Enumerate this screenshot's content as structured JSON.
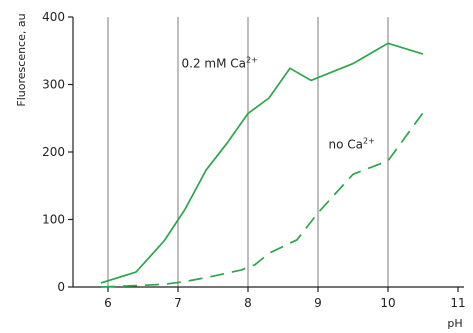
{
  "chart_data": {
    "type": "line",
    "title": "",
    "xlabel": "pH",
    "ylabel": "Fluorescence, au",
    "xlim": [
      5.5,
      11
    ],
    "ylim": [
      0,
      400
    ],
    "x_ticks": [
      6,
      7,
      8,
      9,
      10,
      11
    ],
    "y_ticks": [
      0,
      100,
      200,
      300,
      400
    ],
    "grid": "vertical",
    "legend": "none",
    "series": [
      {
        "color": "#2aa84a",
        "line_style": "solid",
        "points": [
          [
            5.9,
            6
          ],
          [
            6.4,
            22
          ],
          [
            6.8,
            68
          ],
          [
            7.1,
            115
          ],
          [
            7.4,
            173
          ],
          [
            7.7,
            213
          ],
          [
            8.0,
            257
          ],
          [
            8.3,
            280
          ],
          [
            8.6,
            324
          ],
          [
            8.9,
            306
          ],
          [
            9.5,
            331
          ],
          [
            10.0,
            361
          ],
          [
            10.5,
            345
          ]
        ]
      },
      {
        "color": "#2aa84a",
        "line_style": "dashed",
        "points": [
          [
            5.9,
            0
          ],
          [
            6.4,
            2
          ],
          [
            6.8,
            4
          ],
          [
            7.1,
            8
          ],
          [
            7.5,
            16
          ],
          [
            7.9,
            25
          ],
          [
            8.1,
            33
          ],
          [
            8.3,
            50
          ],
          [
            8.7,
            70
          ],
          [
            9.0,
            110
          ],
          [
            9.5,
            167
          ],
          [
            10.0,
            187
          ],
          [
            10.5,
            258
          ]
        ]
      }
    ],
    "annotations": [
      {
        "base": "0.2 mM Ca",
        "sup": "2+",
        "x": 7.05,
        "y": 325
      },
      {
        "base": "no Ca",
        "sup": "2+",
        "x": 9.15,
        "y": 205
      }
    ]
  }
}
